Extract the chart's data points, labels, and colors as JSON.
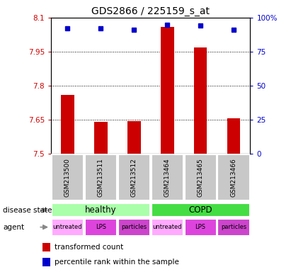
{
  "title": "GDS2866 / 225159_s_at",
  "samples": [
    "GSM213500",
    "GSM213511",
    "GSM213512",
    "GSM213464",
    "GSM213465",
    "GSM213466"
  ],
  "red_values": [
    7.76,
    7.64,
    7.645,
    8.06,
    7.97,
    7.655
  ],
  "blue_values": [
    92,
    92,
    91,
    95,
    94,
    91
  ],
  "ylim_left": [
    7.5,
    8.1
  ],
  "ylim_right": [
    0,
    100
  ],
  "yticks_left": [
    7.5,
    7.65,
    7.8,
    7.95,
    8.1
  ],
  "yticks_right": [
    0,
    25,
    50,
    75,
    100
  ],
  "ytick_labels_left": [
    "7.5",
    "7.65",
    "7.8",
    "7.95",
    "8.1"
  ],
  "ytick_labels_right": [
    "0",
    "25",
    "50",
    "75",
    "100%"
  ],
  "disease_state_labels": [
    "healthy",
    "COPD"
  ],
  "disease_state_colors": [
    "#aaffaa",
    "#44dd44"
  ],
  "agent_labels": [
    "untreated",
    "LPS",
    "particles",
    "untreated",
    "LPS",
    "particles"
  ],
  "agent_colors": [
    "#ffaaff",
    "#dd44dd",
    "#cc44cc",
    "#ffaaff",
    "#dd44dd",
    "#cc44cc"
  ],
  "bar_color": "#cc0000",
  "dot_color": "#0000cc",
  "grid_color": "#000000",
  "sample_box_color": "#c8c8c8",
  "legend_red_label": "transformed count",
  "legend_blue_label": "percentile rank within the sample",
  "left_label_color": "#cc0000",
  "right_label_color": "#0000cc",
  "title_fontsize": 10,
  "tick_fontsize": 7.5,
  "label_fontsize": 8,
  "bar_width": 0.4
}
